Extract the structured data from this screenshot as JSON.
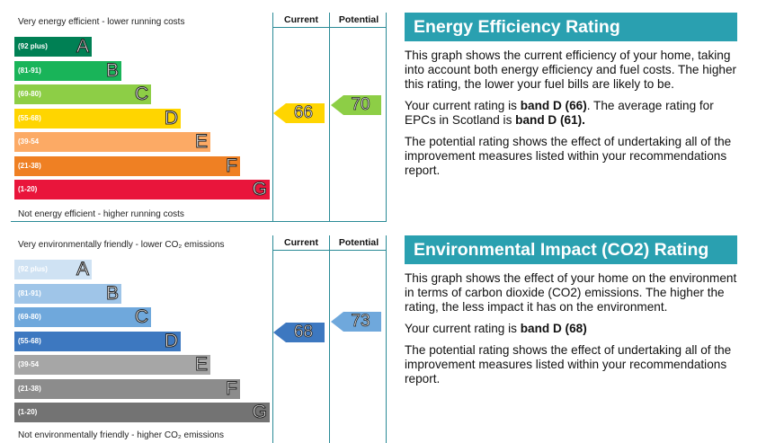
{
  "energy": {
    "caption_top": "Very energy efficient - lower running costs",
    "caption_bottom": "Not energy efficient - higher running costs",
    "col_current": "Current",
    "col_potential": "Potential",
    "bands": [
      {
        "range": "(92 plus)",
        "letter": "A",
        "color": "#008054"
      },
      {
        "range": "(81-91)",
        "letter": "B",
        "color": "#19b459"
      },
      {
        "range": "(69-80)",
        "letter": "C",
        "color": "#8dce46"
      },
      {
        "range": "(55-68)",
        "letter": "D",
        "color": "#ffd500"
      },
      {
        "range": "(39-54",
        "letter": "E",
        "color": "#fcaa65"
      },
      {
        "range": "(21-38)",
        "letter": "F",
        "color": "#ef8023"
      },
      {
        "range": "(1-20)",
        "letter": "G",
        "color": "#e9153b"
      }
    ],
    "current": {
      "value": "66",
      "color": "#ffd500"
    },
    "potential": {
      "value": "70",
      "color": "#8dce46"
    },
    "heading": "Energy Efficiency Rating",
    "para1": "This graph shows the current efficiency of your home, taking into account both energy efficiency and fuel costs. The higher this rating, the lower your fuel bills are likely to be.",
    "para2_a": "Your current rating is ",
    "para2_b": "band D (66)",
    "para2_c": ". The average rating for EPCs in Scotland is ",
    "para2_d": "band D (61).",
    "para3": "The potential rating shows the effect of undertaking all of the improvement measures listed within your recommendations report."
  },
  "environment": {
    "caption_top": "Very environmentally friendly - lower CO₂ emissions",
    "caption_bottom": "Not environmentally friendly - higher CO₂ emissions",
    "col_current": "Current",
    "col_potential": "Potential",
    "bands": [
      {
        "range": "(92 plus)",
        "letter": "A",
        "color": "#cfe2f3"
      },
      {
        "range": "(81-91)",
        "letter": "B",
        "color": "#9fc5e8"
      },
      {
        "range": "(69-80)",
        "letter": "C",
        "color": "#6fa8dc"
      },
      {
        "range": "(55-68)",
        "letter": "D",
        "color": "#3d78c0"
      },
      {
        "range": "(39-54",
        "letter": "E",
        "color": "#a6a6a6"
      },
      {
        "range": "(21-38)",
        "letter": "F",
        "color": "#8c8c8c"
      },
      {
        "range": "(1-20)",
        "letter": "G",
        "color": "#737373"
      }
    ],
    "current": {
      "value": "68",
      "color": "#3d78c0"
    },
    "potential": {
      "value": "73",
      "color": "#6fa8dc"
    },
    "heading": "Environmental Impact (CO2) Rating",
    "para1": "This graph shows the effect of your home on the environment in terms of carbon dioxide (CO2) emissions. The higher the rating, the less impact it has on the environment.",
    "para2_a": "Your current rating is ",
    "para2_b": "band D (68)",
    "para3": "The potential rating shows the effect of undertaking all of the improvement measures listed within your recommendations report."
  }
}
